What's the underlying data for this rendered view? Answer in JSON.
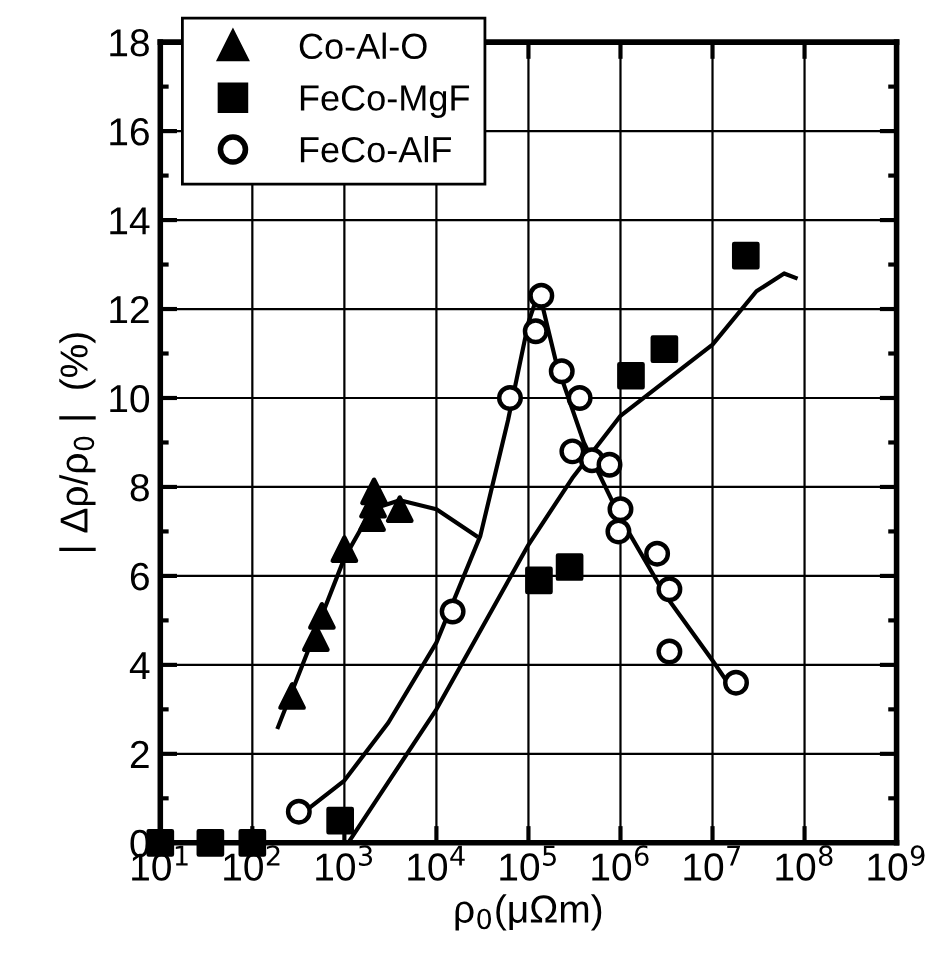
{
  "chart_data": {
    "type": "scatter",
    "xlabel": "ρ$_{0}$(μΩm)",
    "ylabel": "| Δρ/ρ$_{0}$ |  (%)",
    "log": "x",
    "grid": true,
    "legend": "top left",
    "xlim": [
      10,
      1000000000
    ],
    "ylim": [
      0,
      18
    ],
    "xticks": [
      {
        "value": 10,
        "label": "10$^{1}$"
      },
      {
        "value": 100,
        "label": "10$^{2}$"
      },
      {
        "value": 1000,
        "label": "10$^{3}$"
      },
      {
        "value": 10000,
        "label": "10$^{4}$"
      },
      {
        "value": 100000,
        "label": "10$^{5}$"
      },
      {
        "value": 1000000,
        "label": "10$^{6}$"
      },
      {
        "value": 10000000,
        "label": "10$^{7}$"
      },
      {
        "value": 100000000,
        "label": "10$^{8}$"
      },
      {
        "value": 1000000000,
        "label": "10$^{9}$"
      }
    ],
    "yticks": [
      0,
      2,
      4,
      6,
      8,
      10,
      12,
      14,
      16,
      18
    ],
    "series": [
      {
        "name": "Co-Al-O",
        "color": "#000000",
        "marker": "triangle",
        "x": [
          270,
          490,
          570,
          1000,
          2000,
          2100,
          2050,
          4000
        ],
        "values": [
          3.3,
          4.6,
          5.1,
          6.6,
          7.3,
          7.9,
          7.6,
          7.5
        ]
      },
      {
        "name": "FeCo-MgF",
        "color": "#000000",
        "marker": "square",
        "x": [
          10,
          35,
          100,
          900,
          130000,
          280000,
          1300000,
          3000000,
          23000000
        ],
        "values": [
          0,
          0,
          0,
          0.5,
          5.9,
          6.2,
          10.5,
          11.1,
          13.2
        ]
      },
      {
        "name": "FeCo-AlF",
        "color": "#000000",
        "marker": "circle",
        "x": [
          320,
          15000,
          63000,
          120000,
          138000,
          230000,
          360000,
          300000,
          490000,
          760000,
          1000000,
          950000,
          2500000,
          3400000,
          3400000,
          18000000
        ],
        "values": [
          0.7,
          5.2,
          10.0,
          11.5,
          12.3,
          10.6,
          10.0,
          8.8,
          8.6,
          8.5,
          7.5,
          7.0,
          6.5,
          5.7,
          4.3,
          3.6
        ]
      },
      {
        "type": "line",
        "color": "#000000",
        "marker": "none",
        "x": [
          190,
          400,
          1000,
          2000,
          4000,
          10000,
          27000
        ],
        "values": [
          2.6,
          4.3,
          6.4,
          7.5,
          7.7,
          7.5,
          6.9
        ]
      },
      {
        "type": "line",
        "color": "#000000",
        "marker": "none",
        "x": [
          320,
          1000,
          3000,
          10000,
          30000,
          60000,
          100000,
          130000,
          200000,
          400000,
          1000000,
          3000000,
          10000000,
          17000000
        ],
        "values": [
          0.6,
          1.4,
          2.7,
          4.5,
          6.9,
          9.5,
          11.7,
          12.4,
          10.8,
          9.0,
          7.3,
          5.6,
          4.1,
          3.4
        ]
      },
      {
        "type": "line",
        "color": "#000000",
        "marker": "none",
        "x": [
          1100,
          10000,
          100000,
          300000,
          1000000,
          10000000,
          30000000,
          60000000,
          80000000
        ],
        "values": [
          0,
          3.0,
          6.7,
          8.2,
          9.6,
          11.2,
          12.4,
          12.8,
          12.7
        ]
      }
    ]
  }
}
